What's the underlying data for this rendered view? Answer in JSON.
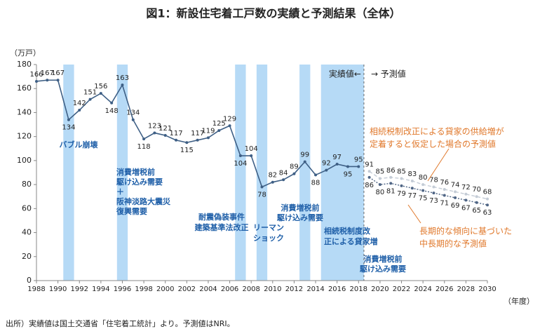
{
  "chart_data": {
    "type": "line",
    "title": "図1：新設住宅着工戸数の実績と予測結果（全体）",
    "y_label": "（万戸）",
    "x_label": "（年度）",
    "source": "出所）実績値は国土交通省「住宅着工統計」より。予測値はNRI。",
    "xlim": [
      1988,
      2030
    ],
    "xticks": [
      1988,
      1990,
      1992,
      1994,
      1996,
      1998,
      2000,
      2002,
      2004,
      2006,
      2008,
      2010,
      2012,
      2014,
      2016,
      2018,
      2020,
      2022,
      2024,
      2026,
      2028,
      2030
    ],
    "ylim": [
      0,
      180
    ],
    "yticks": [
      0,
      20,
      40,
      60,
      80,
      100,
      120,
      140,
      160,
      180
    ],
    "divider_labels": [
      "実績値←",
      "→ 予測値"
    ],
    "highlight_periods": [
      [
        1991,
        1991
      ],
      [
        1996,
        1996
      ],
      [
        2007,
        2007
      ],
      [
        2009,
        2009
      ],
      [
        2013,
        2013
      ],
      [
        2015,
        2018
      ]
    ],
    "annotations": [
      {
        "lines": [
          "バブル崩壊"
        ]
      },
      {
        "lines": [
          "消費増税前",
          "駆け込み需要",
          "＋",
          "阪神淡路大震災",
          "復興需要"
        ]
      },
      {
        "lines": [
          "耐震偽装事件",
          "建築基準法改正"
        ]
      },
      {
        "lines": [
          "リーマン",
          "ショック"
        ]
      },
      {
        "lines": [
          "消費増税前",
          "駆け込み需要"
        ]
      },
      {
        "lines": [
          "相続税制度改",
          "正による貸家増"
        ]
      },
      {
        "lines": [
          "消費増税前",
          "駆け込み需要"
        ]
      },
      {
        "lines": [
          "相続税制改正による貸家の供給増が",
          "定着すると仮定した場合の予測値"
        ]
      },
      {
        "lines": [
          "長期的な傾向に基づいた",
          "中長期的な予測値"
        ]
      }
    ],
    "series": [
      {
        "color": "#3e5f85",
        "x": [
          1988,
          1989,
          1990,
          1991,
          1992,
          1993,
          1994,
          1995,
          1996,
          1997,
          1998,
          1999,
          2000,
          2001,
          2002,
          2003,
          2004,
          2005,
          2006,
          2007,
          2008,
          2009,
          2010,
          2011,
          2012,
          2013,
          2014,
          2015,
          2016,
          2017,
          2018
        ],
        "values": [
          166,
          167,
          167,
          134,
          142,
          151,
          156,
          148,
          163,
          134,
          118,
          123,
          121,
          117,
          115,
          117,
          119,
          125,
          129,
          104,
          104,
          78,
          82,
          84,
          89,
          99,
          88,
          92,
          97,
          95,
          95
        ]
      },
      {
        "color": "#c4ccd6",
        "x": [
          2019,
          2020,
          2021,
          2022,
          2023,
          2024,
          2025,
          2026,
          2027,
          2028,
          2029,
          2030
        ],
        "values": [
          91,
          85,
          86,
          85,
          83,
          80,
          78,
          76,
          74,
          72,
          70,
          68
        ]
      },
      {
        "color": "#4f6585",
        "x": [
          2019,
          2020,
          2021,
          2022,
          2023,
          2024,
          2025,
          2026,
          2027,
          2028,
          2029,
          2030
        ],
        "values": [
          86,
          80,
          81,
          79,
          77,
          75,
          73,
          71,
          69,
          67,
          65,
          63
        ]
      }
    ]
  }
}
